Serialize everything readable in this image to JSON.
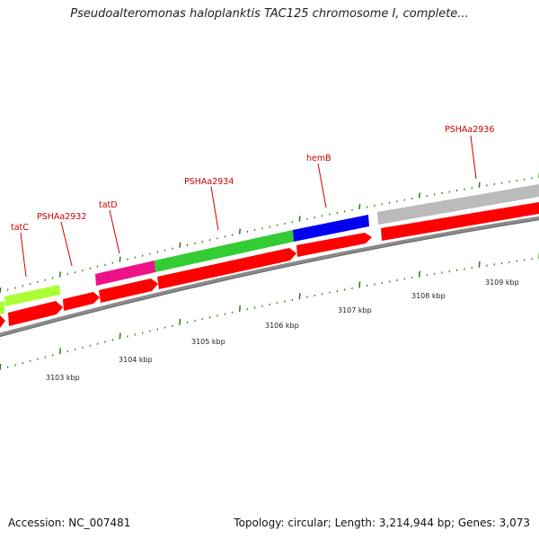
{
  "title": "Pseudoalteromonas haloplanktis TAC125 chromosome I, complete...",
  "footer": {
    "accession": "Accession: NC_007481",
    "summary": "Topology: circular; Length: 3,214,944 bp; Genes: 3,073"
  },
  "colors": {
    "cds": "#ff0000",
    "backbone": "#8a8a8a",
    "tick": "#2f7a14",
    "label": "#cc0000",
    "genes": [
      "#aaff33",
      "#ee1188",
      "#33cc33",
      "#0000ee",
      "#bbbbbb"
    ]
  },
  "gene_labels": [
    "tatC",
    "PSHAa2932",
    "tatD",
    "PSHAa2934",
    "hemB",
    "PSHAa2936"
  ],
  "kbp_labels": [
    "3103 kbp",
    "3104 kbp",
    "3105 kbp",
    "3106 kbp",
    "3107 kbp",
    "3108 kbp",
    "3109 kbp"
  ]
}
